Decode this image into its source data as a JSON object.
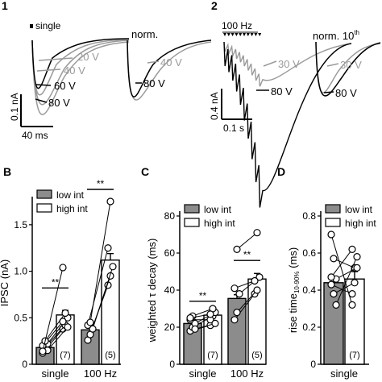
{
  "colors": {
    "gray_trace": "#9a9a9a",
    "black_trace": "#000000",
    "low_bar": "#8c8c8c",
    "high_bar": "#ffffff"
  },
  "trace_panels": {
    "panel1": {
      "label": "1",
      "stim_label": "single",
      "norm_label": "norm.",
      "trace_labels": [
        "20 V",
        "40 V",
        "60 V",
        "80 V"
      ],
      "norm_trace_labels": [
        "40 V",
        "80 V"
      ],
      "scale_y": "0.1 nA",
      "scale_x": "40 ms"
    },
    "panel2": {
      "label": "2",
      "stim_label": "100 Hz",
      "norm_label": "norm. 10",
      "norm_sup": "th",
      "trace_labels": [
        "30 V",
        "80 V"
      ],
      "norm_trace_labels": [
        "30 V",
        "80 V"
      ],
      "scale_y": "0.4 nA",
      "scale_x": "0.1 s"
    }
  },
  "chart_data": [
    {
      "panel": "B",
      "type": "bar",
      "ylabel": "IPSC (nA)",
      "ylim": [
        0,
        1.75
      ],
      "yticks": [
        "0",
        "0.5",
        "1.0",
        "1.5"
      ],
      "categories": [
        "single",
        "100 Hz"
      ],
      "legend": [
        "low int",
        "high int"
      ],
      "series": [
        {
          "name": "low int",
          "values": [
            0.18,
            0.37
          ]
        },
        {
          "name": "high int",
          "values": [
            0.53,
            1.12
          ]
        }
      ],
      "n_labels": [
        "(7)",
        "(5)"
      ],
      "significance": [
        "**",
        "**"
      ],
      "pairs": [
        [
          [
            0.12,
            0.38
          ],
          [
            0.18,
            0.42
          ],
          [
            0.22,
            0.5
          ],
          [
            0.2,
            0.46
          ],
          [
            0.25,
            0.55
          ],
          [
            0.15,
            0.4
          ],
          [
            0.14,
            1.04
          ]
        ],
        [
          [
            0.26,
            0.85
          ],
          [
            0.32,
            0.95
          ],
          [
            0.38,
            1.05
          ],
          [
            0.42,
            1.25
          ],
          [
            0.45,
            1.75
          ]
        ]
      ]
    },
    {
      "panel": "C",
      "type": "bar",
      "ylabel": "weighted τ decay (ms)",
      "ylim": [
        0,
        80
      ],
      "yticks": [
        "0",
        "20",
        "40",
        "60",
        "80"
      ],
      "categories": [
        "single",
        "100 Hz"
      ],
      "legend": [
        "low int",
        "high int"
      ],
      "series": [
        {
          "name": "low int",
          "values": [
            22,
            35.5
          ]
        },
        {
          "name": "high int",
          "values": [
            26.5,
            46
          ]
        }
      ],
      "n_labels": [
        "(7)",
        "(5)"
      ],
      "significance": [
        "**",
        "**"
      ],
      "pairs": [
        [
          [
            18,
            21
          ],
          [
            20,
            26
          ],
          [
            22,
            28
          ],
          [
            24,
            24
          ],
          [
            26,
            30
          ],
          [
            19,
            22
          ],
          [
            25,
            27
          ]
        ],
        [
          [
            24,
            38
          ],
          [
            28,
            40
          ],
          [
            38,
            47
          ],
          [
            41,
            45
          ],
          [
            62,
            71
          ]
        ]
      ]
    },
    {
      "panel": "D",
      "type": "bar",
      "ylabel": "rise time",
      "ylabel_sub": "10-90%",
      "ylabel_unit": "(ms)",
      "ylim": [
        0,
        0.8
      ],
      "yticks": [
        "0",
        "0.2",
        "0.4",
        "0.6",
        "0.8"
      ],
      "categories": [
        "single"
      ],
      "legend": [
        "low int",
        "high int"
      ],
      "series": [
        {
          "name": "low int",
          "values": [
            0.44
          ]
        },
        {
          "name": "high int",
          "values": [
            0.46
          ]
        }
      ],
      "n_labels": [
        "(7)"
      ],
      "pairs": [
        [
          [
            0.7,
            0.32
          ],
          [
            0.57,
            0.52
          ],
          [
            0.46,
            0.52
          ],
          [
            0.43,
            0.38
          ],
          [
            0.38,
            0.44
          ],
          [
            0.32,
            0.58
          ],
          [
            0.47,
            0.62
          ]
        ]
      ]
    }
  ]
}
